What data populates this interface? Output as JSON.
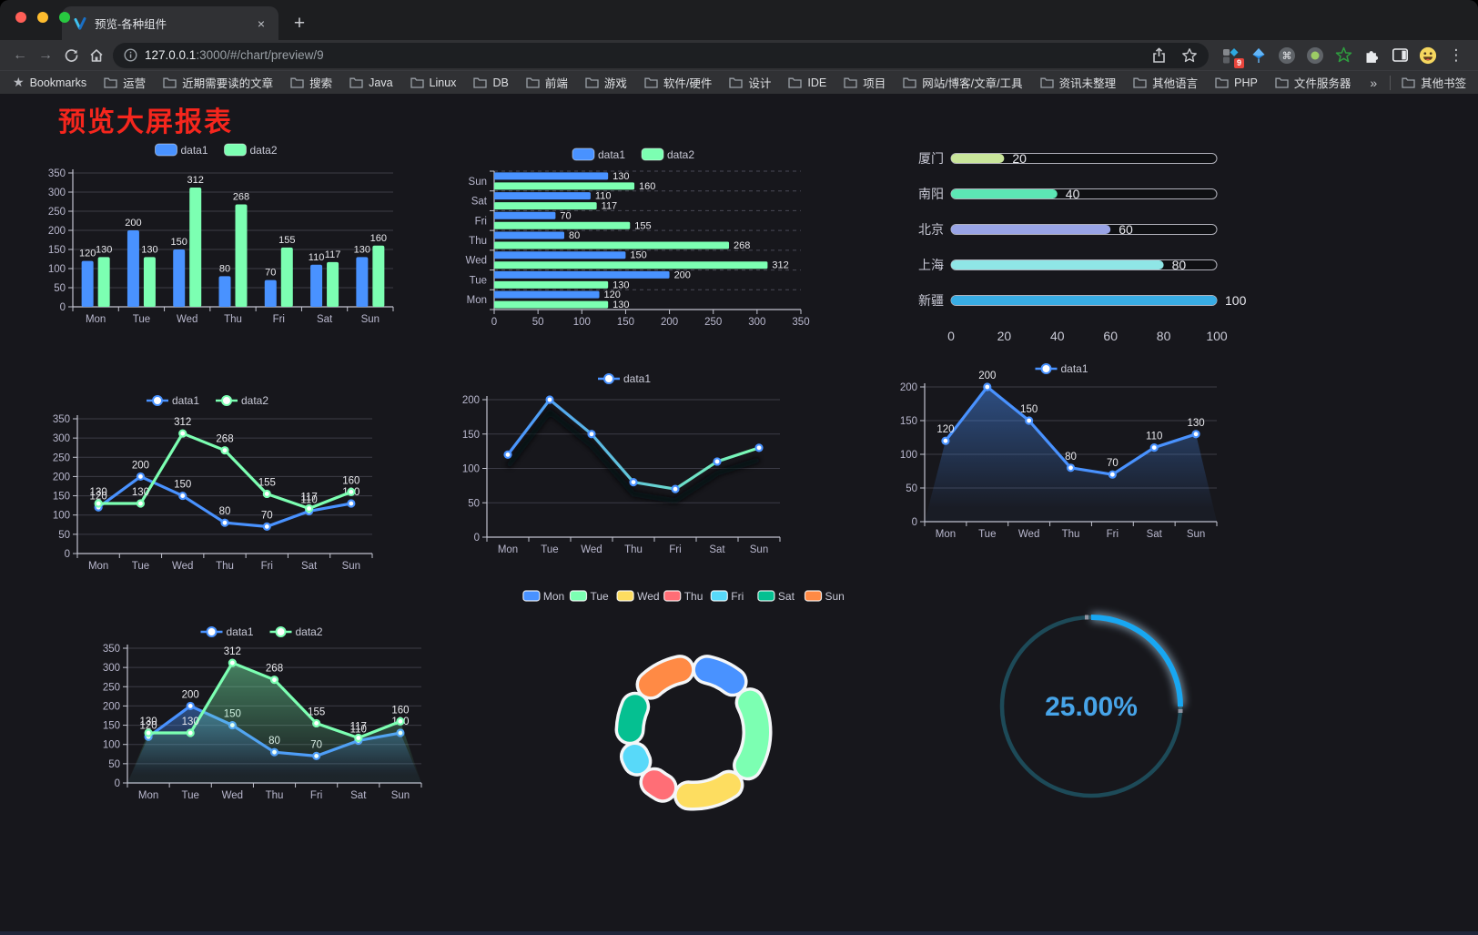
{
  "browser": {
    "tab": {
      "title": "预览-各种组件",
      "close": "×",
      "new_tab": "+"
    },
    "url": {
      "host": "127.0.0.1",
      "rest": ":3000/#/chart/preview/9"
    },
    "extension_badge": "9",
    "bookmarks_bar": {
      "star_label": "Bookmarks",
      "folders": [
        "运营",
        "近期需要读的文章",
        "搜索",
        "Java",
        "Linux",
        "DB",
        "前端",
        "游戏",
        "软件/硬件",
        "设计",
        "IDE",
        "项目",
        "网站/博客/文章/工具",
        "资讯未整理",
        "其他语言",
        "PHP",
        "文件服务器"
      ],
      "overflow": "»",
      "other_bookmarks": "其他书签"
    }
  },
  "page": {
    "title": "预览大屏报表",
    "title_color": "#f5261d",
    "background": "#17171c"
  },
  "palette": {
    "data1_blue": "#4992ff",
    "data2_green": "#7cffb2",
    "axis_text": "#b9b8ce",
    "grid_line": "#3c3c46",
    "axis_line": "#c2c3cf",
    "value_label": "#e9e9ed"
  },
  "chart_data": [
    {
      "id": "c1",
      "type": "bar",
      "categories": [
        "Mon",
        "Tue",
        "Wed",
        "Thu",
        "Fri",
        "Sat",
        "Sun"
      ],
      "series": [
        {
          "name": "data1",
          "color": "#4992ff",
          "values": [
            120,
            200,
            150,
            80,
            70,
            110,
            130
          ]
        },
        {
          "name": "data2",
          "color": "#7cffb2",
          "values": [
            130,
            130,
            312,
            268,
            155,
            117,
            160
          ]
        }
      ],
      "ylim": [
        0,
        350
      ],
      "yticks": [
        0,
        50,
        100,
        150,
        200,
        250,
        300,
        350
      ],
      "show_labels": true,
      "legend_position": "top",
      "grid": true
    },
    {
      "id": "c2",
      "type": "hbar",
      "categories": [
        "Mon",
        "Tue",
        "Wed",
        "Thu",
        "Fri",
        "Sat",
        "Sun"
      ],
      "category_order": "Mon at bottom, Sun at top",
      "series": [
        {
          "name": "data1",
          "color": "#4992ff",
          "values": [
            120,
            200,
            150,
            80,
            70,
            110,
            130
          ]
        },
        {
          "name": "data2",
          "color": "#7cffb2",
          "values": [
            130,
            130,
            312,
            268,
            155,
            117,
            160
          ]
        }
      ],
      "xlim": [
        0,
        350
      ],
      "xticks": [
        0,
        50,
        100,
        150,
        200,
        250,
        300,
        350
      ],
      "show_labels": true,
      "legend_position": "top"
    },
    {
      "id": "c3",
      "type": "progress-bars",
      "max": 100,
      "xticks": [
        0,
        20,
        40,
        60,
        80,
        100
      ],
      "rows": [
        {
          "label": "厦门",
          "value": 20,
          "color": "#c9e59b"
        },
        {
          "label": "南阳",
          "value": 40,
          "color": "#5ce6b4"
        },
        {
          "label": "北京",
          "value": 60,
          "color": "#99a4e6"
        },
        {
          "label": "上海",
          "value": 80,
          "color": "#8fe6e6"
        },
        {
          "label": "新疆",
          "value": 100,
          "color": "#38ace4"
        }
      ]
    },
    {
      "id": "c4",
      "type": "line",
      "categories": [
        "Mon",
        "Tue",
        "Wed",
        "Thu",
        "Fri",
        "Sat",
        "Sun"
      ],
      "series": [
        {
          "name": "data1",
          "color": "#4992ff",
          "values": [
            120,
            200,
            150,
            80,
            70,
            110,
            130
          ]
        },
        {
          "name": "data2",
          "color": "#7cffb2",
          "values": [
            130,
            130,
            312,
            268,
            155,
            117,
            160
          ]
        }
      ],
      "ylim": [
        0,
        350
      ],
      "yticks": [
        0,
        50,
        100,
        150,
        200,
        250,
        300,
        350
      ],
      "show_labels": true,
      "legend_position": "top"
    },
    {
      "id": "c5",
      "type": "line",
      "categories": [
        "Mon",
        "Tue",
        "Wed",
        "Thu",
        "Fri",
        "Sat",
        "Sun"
      ],
      "series": [
        {
          "name": "data1",
          "gradient": [
            "#4992ff",
            "#7cffb2"
          ],
          "color": "#4992ff",
          "values": [
            120,
            200,
            150,
            80,
            70,
            110,
            130
          ]
        }
      ],
      "ylim": [
        0,
        200
      ],
      "yticks": [
        0,
        50,
        100,
        150,
        200
      ],
      "show_labels": false,
      "legend_position": "top",
      "line_shadow": true
    },
    {
      "id": "c6",
      "type": "area",
      "categories": [
        "Mon",
        "Tue",
        "Wed",
        "Thu",
        "Fri",
        "Sat",
        "Sun"
      ],
      "series": [
        {
          "name": "data1",
          "color": "#4992ff",
          "values": [
            120,
            200,
            150,
            80,
            70,
            110,
            130
          ]
        }
      ],
      "ylim": [
        0,
        200
      ],
      "yticks": [
        0,
        50,
        100,
        150,
        200
      ],
      "show_labels": true,
      "legend_position": "top"
    },
    {
      "id": "c7",
      "type": "area",
      "categories": [
        "Mon",
        "Tue",
        "Wed",
        "Thu",
        "Fri",
        "Sat",
        "Sun"
      ],
      "series": [
        {
          "name": "data1",
          "color": "#4992ff",
          "values": [
            120,
            200,
            150,
            80,
            70,
            110,
            130
          ]
        },
        {
          "name": "data2",
          "color": "#7cffb2",
          "values": [
            130,
            130,
            312,
            268,
            155,
            117,
            160
          ]
        }
      ],
      "ylim": [
        0,
        350
      ],
      "yticks": [
        0,
        50,
        100,
        150,
        200,
        250,
        300,
        350
      ],
      "show_labels": true,
      "legend_position": "top"
    },
    {
      "id": "c8",
      "type": "doughnut",
      "legend_position": "top",
      "items": [
        {
          "name": "Mon",
          "value": 120,
          "color": "#4992ff"
        },
        {
          "name": "Tue",
          "value": 200,
          "color": "#7cffb2"
        },
        {
          "name": "Wed",
          "value": 150,
          "color": "#fddd60"
        },
        {
          "name": "Thu",
          "value": 80,
          "color": "#ff6e76"
        },
        {
          "name": "Fri",
          "value": 70,
          "color": "#58d9f9"
        },
        {
          "name": "Sat",
          "value": 110,
          "color": "#05c091"
        },
        {
          "name": "Sun",
          "value": 130,
          "color": "#ff8a45"
        }
      ]
    },
    {
      "id": "c9",
      "type": "gauge",
      "value_text": "25.00%",
      "percent": 25,
      "progress_color": "#18a7f2",
      "track_color": "#1d4a58",
      "text_color": "#47a4e8"
    }
  ]
}
